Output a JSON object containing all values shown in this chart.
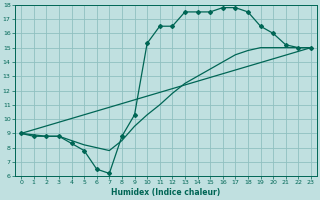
{
  "xlabel": "Humidex (Indice chaleur)",
  "xlim": [
    -0.5,
    23.5
  ],
  "ylim": [
    6,
    18
  ],
  "xticks": [
    0,
    1,
    2,
    3,
    4,
    5,
    6,
    7,
    8,
    9,
    10,
    11,
    12,
    13,
    14,
    15,
    16,
    17,
    18,
    19,
    20,
    21,
    22,
    23
  ],
  "yticks": [
    6,
    7,
    8,
    9,
    10,
    11,
    12,
    13,
    14,
    15,
    16,
    17,
    18
  ],
  "bg_color": "#c0e0e0",
  "grid_color": "#90c0c0",
  "line_color": "#006655",
  "line1_x": [
    0,
    1,
    2,
    3,
    4,
    5,
    6,
    7,
    8,
    9,
    10,
    11,
    12,
    13,
    14,
    15,
    16,
    17,
    18,
    19,
    20,
    21,
    22,
    23
  ],
  "line1_y": [
    9.0,
    8.8,
    8.8,
    8.8,
    8.3,
    7.8,
    6.5,
    6.2,
    8.8,
    10.3,
    15.3,
    16.5,
    16.5,
    17.5,
    17.5,
    17.5,
    17.8,
    17.8,
    17.5,
    16.5,
    16.0,
    15.2,
    15.0,
    15.0
  ],
  "line2_x": [
    0,
    2,
    3,
    4,
    5,
    6,
    7,
    8,
    9,
    10,
    11,
    12,
    13,
    14,
    15,
    16,
    17,
    18,
    19,
    20,
    21,
    22,
    23
  ],
  "line2_y": [
    9.0,
    8.8,
    8.8,
    8.5,
    8.2,
    8.0,
    7.8,
    8.5,
    9.5,
    10.3,
    11.0,
    11.8,
    12.5,
    13.0,
    13.5,
    14.0,
    14.5,
    14.8,
    15.0,
    15.0,
    15.0,
    15.0,
    15.0
  ],
  "line3_x": [
    0,
    23
  ],
  "line3_y": [
    9.0,
    15.0
  ]
}
